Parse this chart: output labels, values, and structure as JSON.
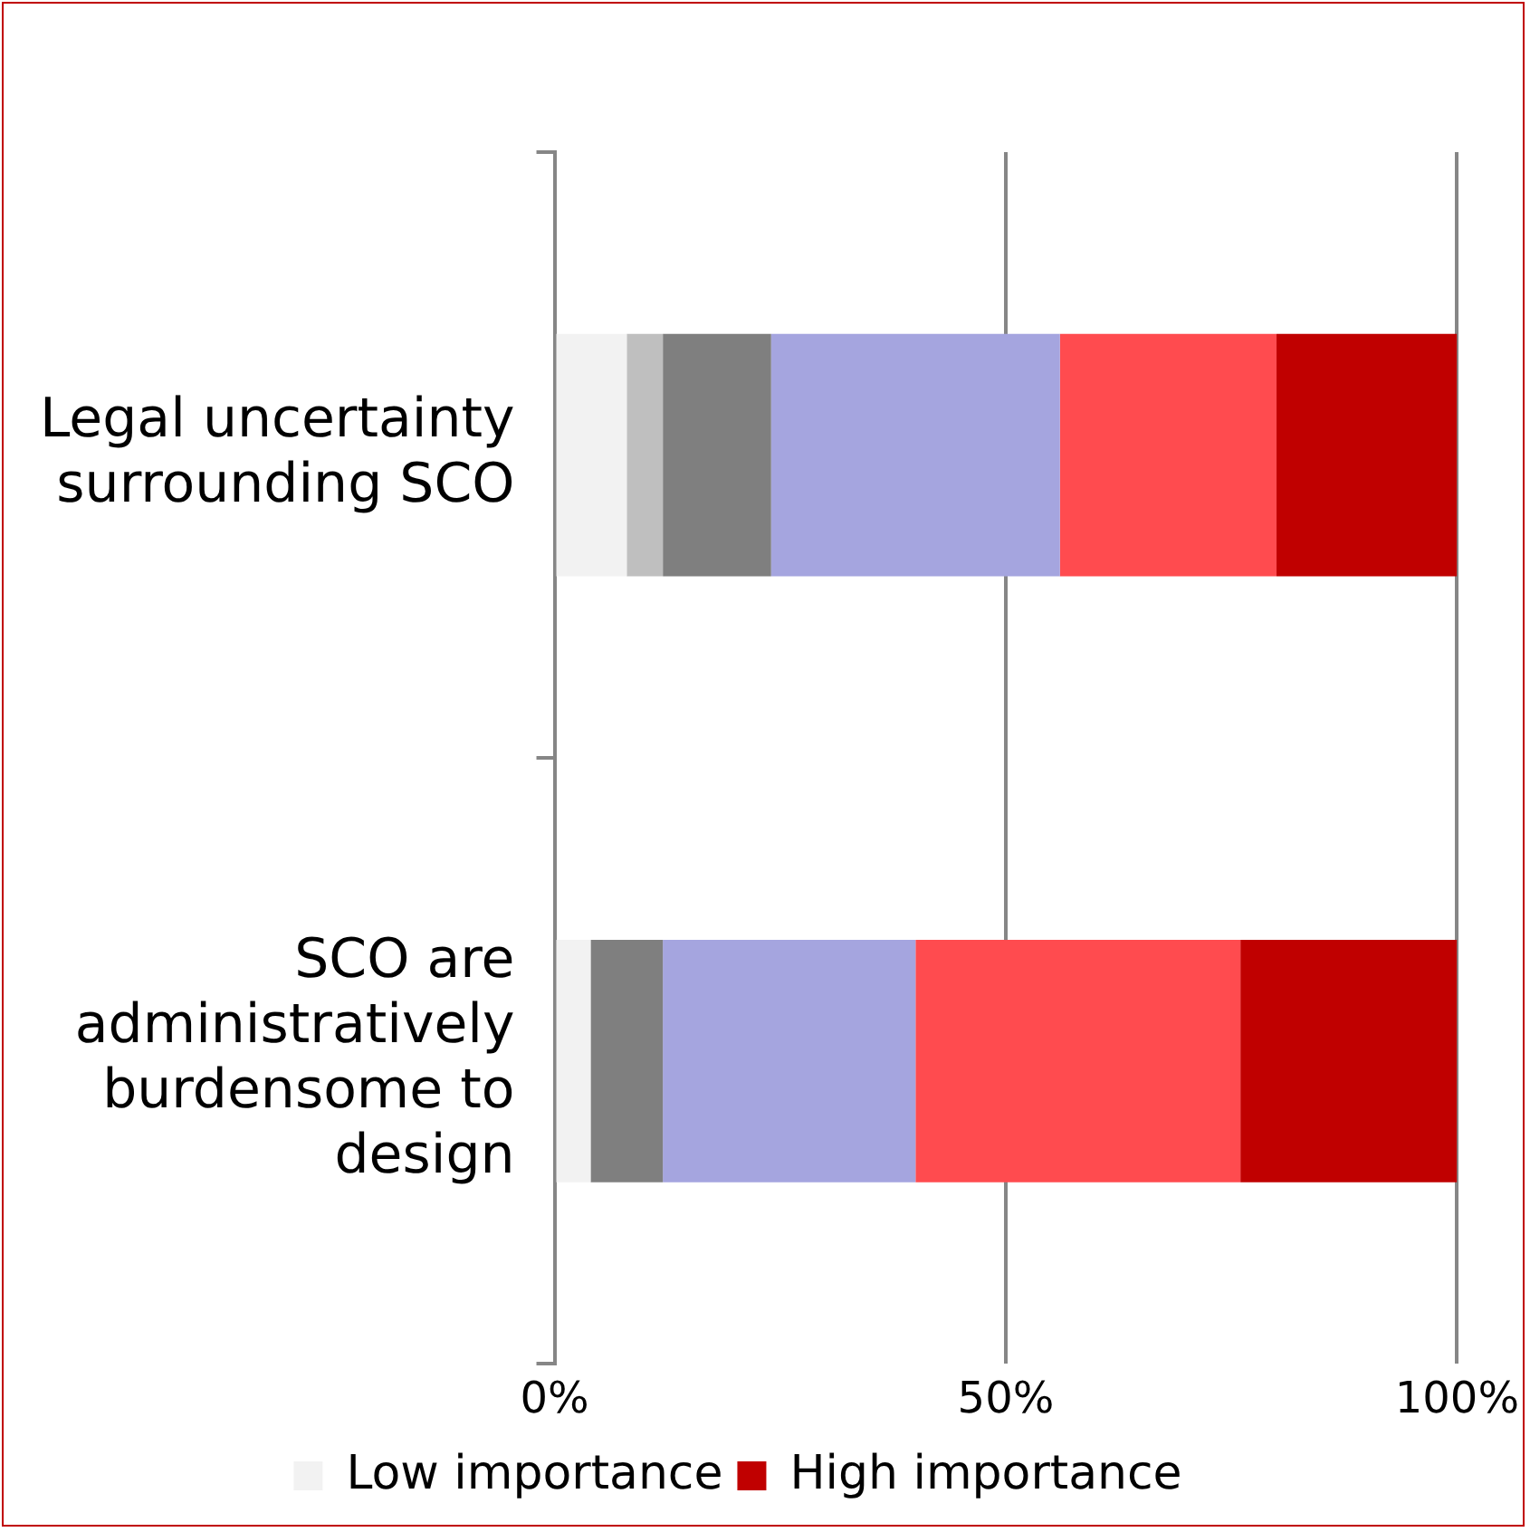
{
  "chart_data": {
    "type": "bar",
    "orientation": "horizontal",
    "stacked": true,
    "categories": [
      "Legal uncertainty surrounding SCO",
      "SCO are administratively burdensome to design"
    ],
    "series": [
      {
        "name": "Low importance",
        "color": "#f2f2f2",
        "values": [
          8,
          4
        ]
      },
      {
        "color": "#bfbfbf",
        "values": [
          4,
          0
        ]
      },
      {
        "color": "#7f7f7f",
        "values": [
          12,
          8
        ]
      },
      {
        "color": "#a5a5df",
        "values": [
          32,
          28
        ]
      },
      {
        "color": "#ff4b4f",
        "values": [
          24,
          36
        ]
      },
      {
        "name": "High importance",
        "color": "#c00000",
        "values": [
          20,
          24
        ]
      }
    ],
    "xlim": [
      0,
      100
    ],
    "xticks": [
      {
        "value": 0,
        "label": "0%"
      },
      {
        "value": 50,
        "label": "50%"
      },
      {
        "value": 100,
        "label": "100%"
      }
    ],
    "grid": "x",
    "legend": "bottom"
  }
}
